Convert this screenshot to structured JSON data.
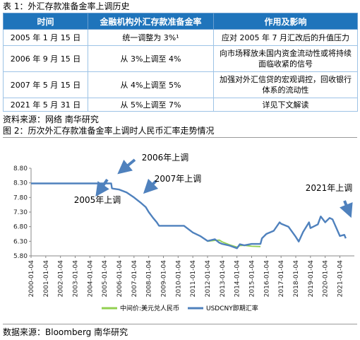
{
  "table_caption": "表 1：外汇存款准备金率上调历史",
  "table": {
    "headers": [
      "时间",
      "金融机构外汇存款准备金率",
      "作用及影响"
    ],
    "rows": [
      {
        "time": "2005 年 1 月 15 日",
        "rate": "统一调整为 3%¹",
        "effect": "应对 2005 年 7 月汇改后的升值压力"
      },
      {
        "time": "2006 年 9 月 15 日",
        "rate": "从 3%上调至 4%",
        "effect": "向市场释放未国内资金流动性或将持续面临收紧的信号"
      },
      {
        "time": "2007 年 5 月 15 日",
        "rate": "从 4%上调至 5%",
        "effect": "加强对外汇信贷的宏观调控，回收银行体系的流动性"
      },
      {
        "time": "2021 年 5 月 31 日",
        "rate": "从 5%上调至 7%",
        "effect": "详见下文解读"
      }
    ]
  },
  "table_source": "资料来源：网络  南华研究",
  "chart_caption": "图 2：历次外汇存款准备金率上调时人民币汇率走势情况",
  "chart_source": "数据来源：Bloomberg  南华研究",
  "chart_data": {
    "type": "line",
    "title": "",
    "ylim": [
      5.8,
      8.8
    ],
    "yticks": [
      "8.80",
      "8.30",
      "7.80",
      "7.30",
      "6.80",
      "6.30",
      "5.80"
    ],
    "xticks": [
      "2000-01-04",
      "2001-01-04",
      "2002-01-04",
      "2003-01-04",
      "2004-01-04",
      "2005-01-04",
      "2006-01-04",
      "2007-01-04",
      "2008-01-04",
      "2009-01-04",
      "2010-01-04",
      "2011-01-04",
      "2012-01-04",
      "2013-01-04",
      "2014-01-04",
      "2015-01-04",
      "2016-01-04",
      "2017-01-04",
      "2018-01-04",
      "2019-01-04",
      "2020-01-04",
      "2021-01-04"
    ],
    "series": [
      {
        "name": "USDCNY即期汇率",
        "color": "#4f81bd",
        "x": [
          2000.0,
          2005.45,
          2005.5,
          2005.6,
          2006.0,
          2006.5,
          2007.0,
          2007.5,
          2007.8,
          2008.0,
          2008.3,
          2008.55,
          2008.7,
          2009.0,
          2010.4,
          2010.5,
          2011.0,
          2011.5,
          2012.0,
          2012.5,
          2012.8,
          2013.0,
          2013.5,
          2014.0,
          2014.2,
          2014.5,
          2015.0,
          2015.6,
          2015.7,
          2016.0,
          2016.5,
          2016.9,
          2017.0,
          2017.5,
          2018.0,
          2018.2,
          2018.5,
          2018.9,
          2019.0,
          2019.5,
          2019.7,
          2020.0,
          2020.3,
          2020.5,
          2021.0,
          2021.3,
          2021.4
        ],
        "values": [
          8.28,
          8.28,
          8.11,
          8.1,
          8.07,
          7.97,
          7.8,
          7.6,
          7.47,
          7.3,
          7.1,
          6.95,
          6.83,
          6.83,
          6.83,
          6.79,
          6.6,
          6.48,
          6.31,
          6.37,
          6.25,
          6.21,
          6.15,
          6.06,
          6.2,
          6.16,
          6.21,
          6.21,
          6.4,
          6.55,
          6.66,
          6.95,
          6.9,
          6.8,
          6.45,
          6.29,
          6.62,
          6.95,
          6.75,
          6.88,
          7.15,
          6.95,
          7.1,
          7.05,
          6.48,
          6.52,
          6.4
        ]
      },
      {
        "name": "中间价:美元兑人民币",
        "color": "#92d050",
        "x": [
          2012.0,
          2012.5,
          2012.8,
          2013.0,
          2013.5,
          2014.0,
          2014.2,
          2014.5,
          2015.0,
          2015.6
        ],
        "values": [
          6.3,
          6.33,
          6.34,
          6.28,
          6.18,
          6.1,
          6.15,
          6.16,
          6.13,
          6.12
        ]
      }
    ],
    "annotations": [
      {
        "label": "2005年上调",
        "x": 2005.04
      },
      {
        "label": "2006年上调",
        "x": 2006.71
      },
      {
        "label": "2007年上调",
        "x": 2007.37
      },
      {
        "label": "2021年上调",
        "x": 2021.41
      }
    ],
    "legend": [
      {
        "label": "中间价:美元兑人民币",
        "color": "#92d050"
      },
      {
        "label": "USDCNY即期汇率",
        "color": "#4f81bd"
      }
    ],
    "grid": false,
    "legend_position": "bottom"
  }
}
